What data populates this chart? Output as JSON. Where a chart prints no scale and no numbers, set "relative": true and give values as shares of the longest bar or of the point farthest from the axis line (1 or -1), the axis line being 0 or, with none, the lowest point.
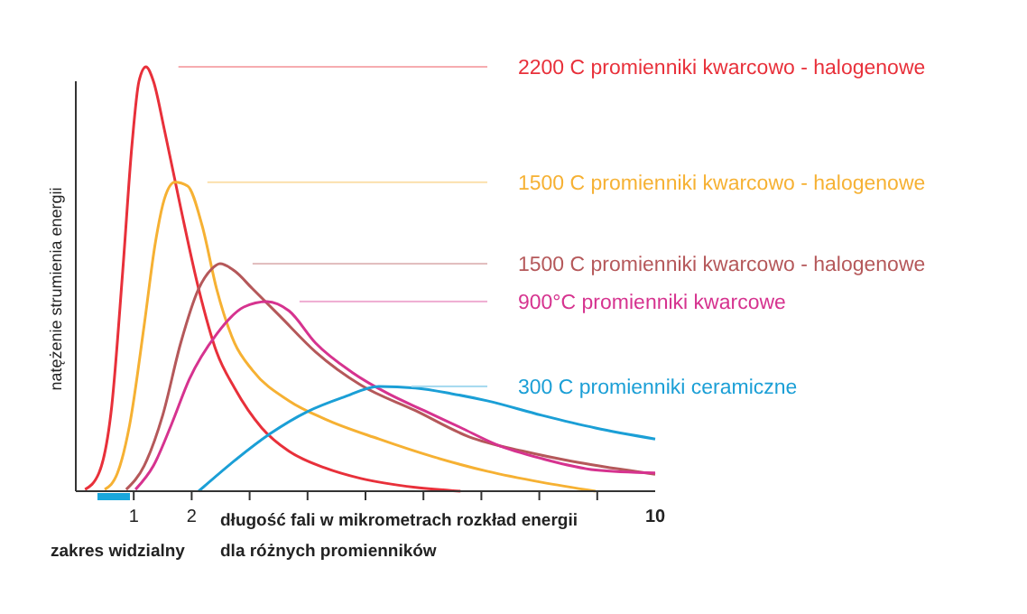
{
  "chart_data": {
    "type": "line",
    "relative": true,
    "xlabel": "długość fali w mikrometrach rozkład energii dla różnych promienników",
    "ylabel": "natężenie strumienia energii",
    "xlim": [
      0,
      10
    ],
    "xticks": [
      1,
      2,
      {
        "value": 3,
        "label": null
      },
      {
        "value": 4,
        "label": null
      },
      {
        "value": 5,
        "label": null
      },
      {
        "value": 6,
        "label": null
      },
      {
        "value": 7,
        "label": null
      },
      {
        "value": 8,
        "label": null
      },
      {
        "value": 9,
        "label": null
      },
      10
    ],
    "annotations": [
      "zakres widzialny"
    ],
    "series": [
      {
        "name": "2200 C promienniki kwarcowo - halogenowe",
        "color": "#e8303a",
        "x": [
          0.16,
          0.4,
          0.62,
          0.81,
          0.97,
          1.09,
          1.21,
          1.34,
          1.53,
          1.81,
          2.12,
          2.43,
          2.74,
          3.21,
          3.68,
          4.3,
          4.92,
          5.86,
          6.64
        ],
        "values": [
          0.004,
          0.043,
          0.2,
          0.519,
          0.817,
          0.966,
          1,
          0.966,
          0.851,
          0.668,
          0.477,
          0.328,
          0.243,
          0.149,
          0.094,
          0.055,
          0.03,
          0.009,
          0
        ]
      },
      {
        "name": "1500 C promienniki kwarcowo - halogenowe",
        "color": "#f6b133",
        "x": [
          0.5,
          0.72,
          0.93,
          1.18,
          1.37,
          1.53,
          1.71,
          1.93,
          2.18,
          2.43,
          2.74,
          3.05,
          3.68,
          4.3,
          5.23,
          6.17,
          7.1,
          8.04,
          8.97
        ],
        "values": [
          0.004,
          0.043,
          0.157,
          0.391,
          0.583,
          0.689,
          0.728,
          0.719,
          0.626,
          0.477,
          0.349,
          0.285,
          0.213,
          0.17,
          0.123,
          0.081,
          0.047,
          0.021,
          0
        ]
      },
      {
        "name": "1500 C promienniki kwarcowo - halogenowe",
        "color": "#b5585a",
        "x": [
          0.87,
          1.18,
          1.5,
          1.81,
          2.12,
          2.34,
          2.49,
          2.74,
          3.05,
          3.52,
          4.14,
          4.92,
          5.86,
          6.79,
          7.73,
          8.66,
          10
        ],
        "values": [
          0.004,
          0.06,
          0.179,
          0.349,
          0.477,
          0.523,
          0.536,
          0.519,
          0.477,
          0.413,
          0.328,
          0.25,
          0.19,
          0.128,
          0.094,
          0.068,
          0.04
        ]
      },
      {
        "name": "900°C promienniki kwarcowe",
        "color": "#d6338f",
        "x": [
          1.03,
          1.34,
          1.65,
          1.96,
          2.43,
          2.9,
          3.3,
          3.68,
          4.14,
          4.77,
          5.39,
          6.01,
          6.64,
          7.26,
          8.04,
          8.97,
          10
        ],
        "values": [
          0.004,
          0.06,
          0.157,
          0.264,
          0.37,
          0.434,
          0.447,
          0.425,
          0.349,
          0.28,
          0.23,
          0.19,
          0.15,
          0.11,
          0.077,
          0.05,
          0.043
        ]
      },
      {
        "name": "300 C promienniki ceramiczne",
        "color": "#1b9fd6",
        "x": [
          2.12,
          2.74,
          3.36,
          3.99,
          4.61,
          5.23,
          5.86,
          6.48,
          7.1,
          8.04,
          8.97,
          10
        ],
        "values": [
          0,
          0.072,
          0.136,
          0.187,
          0.221,
          0.247,
          0.243,
          0.23,
          0.213,
          0.179,
          0.149,
          0.123
        ]
      }
    ]
  }
}
